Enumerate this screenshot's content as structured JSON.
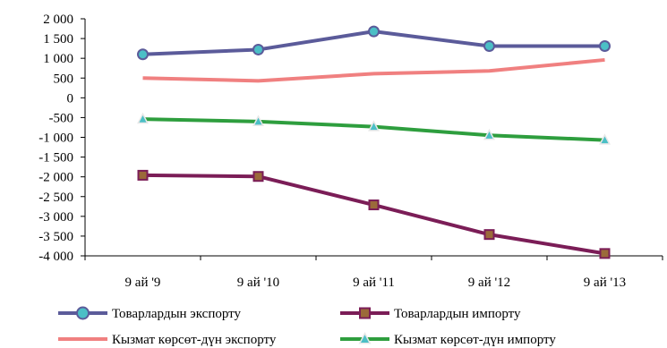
{
  "chart_data": {
    "type": "line",
    "categories": [
      "9 ай '9",
      "9 ай '10",
      "9 ай '11",
      "9 ай '12",
      "9 ай '13"
    ],
    "ylim": [
      -4000,
      2000
    ],
    "ytick_step": 500,
    "ytick_labels": [
      "2 000",
      "1 500",
      "1 000",
      "500",
      "0",
      "-500",
      "-1 000",
      "-1 500",
      "-2 000",
      "-2 500",
      "-3 000",
      "-3 500",
      "-4 000"
    ],
    "grid": false,
    "legend_position": "bottom",
    "series": [
      {
        "name": "Товарлардын экспорту",
        "values": [
          1100,
          1220,
          1680,
          1310,
          1310
        ],
        "color": "#5b5b9a",
        "marker": "circle",
        "marker_fill": "#4bbfc6"
      },
      {
        "name": "Товарлардын импорту",
        "values": [
          -1960,
          -1990,
          -2710,
          -3460,
          -3940
        ],
        "color": "#7b1d57",
        "marker": "square",
        "marker_fill": "#9b6a3a"
      },
      {
        "name": "Кызмат көрсөт-дүн экспорту",
        "values": [
          500,
          430,
          610,
          680,
          960
        ],
        "color": "#f08080",
        "marker": "none"
      },
      {
        "name": "Кызмат көрсөт-дүн импорту",
        "values": [
          -540,
          -600,
          -730,
          -950,
          -1070
        ],
        "color": "#2e9e3e",
        "marker": "triangle",
        "marker_fill": "#4bbfc6"
      }
    ]
  }
}
